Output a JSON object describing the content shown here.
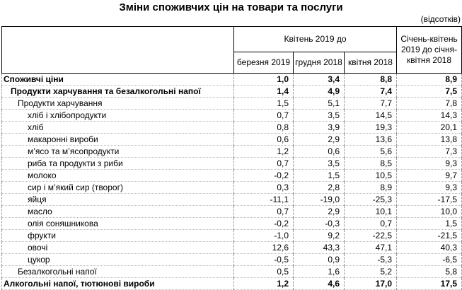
{
  "title": "Зміни споживчих цін на товари та послуги",
  "unit": "(відсотків)",
  "header": {
    "group": "Квітень 2019 до",
    "cols": [
      "березня 2019",
      "грудня 2018",
      "квітня 2018"
    ],
    "last": "Січень-квітень 2019 до січня-квітня 2018"
  },
  "rows": [
    {
      "label": "Споживчі ціни",
      "level": 0,
      "bold": true,
      "values": [
        "1,0",
        "3,4",
        "8,8",
        "8,9"
      ]
    },
    {
      "label": "Продукти харчування та безалкогольні напої",
      "level": 1,
      "bold": true,
      "values": [
        "1,4",
        "4,9",
        "7,4",
        "7,5"
      ]
    },
    {
      "label": "Продукти харчування",
      "level": 2,
      "bold": false,
      "values": [
        "1,5",
        "5,1",
        "7,7",
        "7,8"
      ]
    },
    {
      "label": "хліб і хлібопродукти",
      "level": 3,
      "bold": false,
      "values": [
        "0,7",
        "3,5",
        "14,5",
        "14,3"
      ]
    },
    {
      "label": "хліб",
      "level": 3,
      "bold": false,
      "values": [
        "0,8",
        "3,9",
        "19,3",
        "20,1"
      ]
    },
    {
      "label": "макаронні вироби",
      "level": 3,
      "bold": false,
      "values": [
        "0,6",
        "2,9",
        "13,6",
        "13,8"
      ]
    },
    {
      "label": "м’ясо та м’ясопродукти",
      "level": 3,
      "bold": false,
      "values": [
        "1,2",
        "0,6",
        "5,6",
        "7,3"
      ]
    },
    {
      "label": "риба та продукти з риби",
      "level": 3,
      "bold": false,
      "values": [
        "0,7",
        "3,5",
        "8,5",
        "9,3"
      ]
    },
    {
      "label": "молоко",
      "level": 3,
      "bold": false,
      "values": [
        "-0,2",
        "1,5",
        "10,5",
        "9,7"
      ]
    },
    {
      "label": "сир і м’який сир (творог)",
      "level": 3,
      "bold": false,
      "values": [
        "0,3",
        "2,8",
        "8,9",
        "9,3"
      ]
    },
    {
      "label": "яйця",
      "level": 3,
      "bold": false,
      "values": [
        "-11,1",
        "-19,0",
        "-25,3",
        "-17,5"
      ]
    },
    {
      "label": "масло",
      "level": 3,
      "bold": false,
      "values": [
        "0,7",
        "2,9",
        "10,1",
        "10,0"
      ]
    },
    {
      "label": "олія соняшникова",
      "level": 3,
      "bold": false,
      "values": [
        "-0,2",
        "-0,3",
        "0,7",
        "1,5"
      ]
    },
    {
      "label": "фрукти",
      "level": 3,
      "bold": false,
      "values": [
        "-1,0",
        "9,2",
        "-22,5",
        "-21,5"
      ]
    },
    {
      "label": "овочі",
      "level": 3,
      "bold": false,
      "values": [
        "12,6",
        "43,3",
        "47,1",
        "40,3"
      ]
    },
    {
      "label": "цукор",
      "level": 3,
      "bold": false,
      "values": [
        "-0,5",
        "0,9",
        "-5,3",
        "-6,5"
      ]
    },
    {
      "label": "Безалкогольні напої",
      "level": 2,
      "bold": false,
      "values": [
        "0,5",
        "1,6",
        "5,2",
        "5,8"
      ]
    },
    {
      "label": "Алкогольні напої, тютюнові вироби",
      "level": 0,
      "bold": true,
      "values": [
        "1,2",
        "4,6",
        "17,0",
        "17,5"
      ]
    }
  ]
}
